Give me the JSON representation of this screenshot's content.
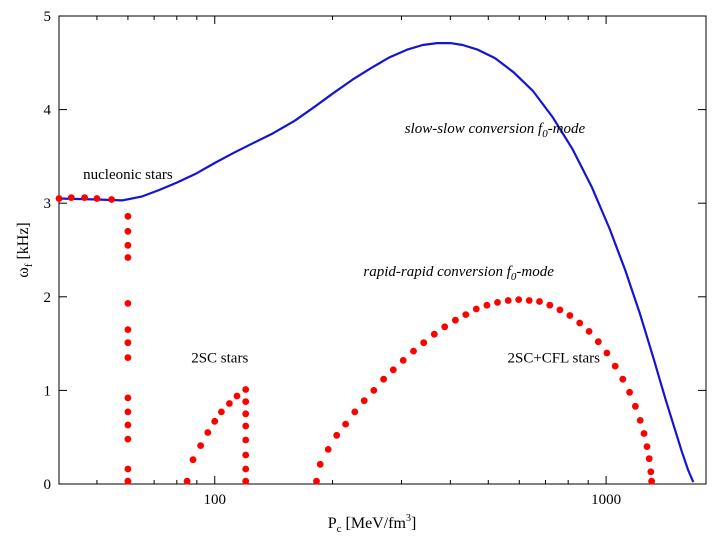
{
  "chart_data": {
    "type": "scatter",
    "title": "",
    "xlabel": {
      "main": "P",
      "sub": "c",
      "unit": " [MeV/fm",
      "sup": "3",
      "close": "]"
    },
    "ylabel": {
      "main": "ω",
      "sub": "f",
      "unit": " [kHz]"
    },
    "xscale": "log",
    "xlim": [
      40,
      1800
    ],
    "ylim": [
      0,
      5
    ],
    "x_ticks": [
      100,
      1000
    ],
    "y_ticks": [
      0,
      1,
      2,
      3,
      4,
      5
    ],
    "grid": false,
    "colors": {
      "line": "#1414d2",
      "dots": "#ff0000",
      "axis": "#000000"
    },
    "series": [
      {
        "style": "line",
        "points": [
          [
            40,
            3.05
          ],
          [
            50,
            3.04
          ],
          [
            58,
            3.03
          ],
          [
            65,
            3.07
          ],
          [
            72,
            3.14
          ],
          [
            80,
            3.22
          ],
          [
            90,
            3.32
          ],
          [
            100,
            3.43
          ],
          [
            112,
            3.54
          ],
          [
            125,
            3.64
          ],
          [
            140,
            3.74
          ],
          [
            160,
            3.88
          ],
          [
            180,
            4.03
          ],
          [
            200,
            4.17
          ],
          [
            225,
            4.32
          ],
          [
            250,
            4.44
          ],
          [
            280,
            4.56
          ],
          [
            310,
            4.64
          ],
          [
            340,
            4.69
          ],
          [
            370,
            4.71
          ],
          [
            400,
            4.71
          ],
          [
            430,
            4.69
          ],
          [
            470,
            4.64
          ],
          [
            520,
            4.55
          ],
          [
            580,
            4.4
          ],
          [
            650,
            4.2
          ],
          [
            730,
            3.92
          ],
          [
            820,
            3.58
          ],
          [
            920,
            3.17
          ],
          [
            1020,
            2.73
          ],
          [
            1120,
            2.28
          ],
          [
            1220,
            1.82
          ],
          [
            1320,
            1.35
          ],
          [
            1420,
            0.9
          ],
          [
            1500,
            0.58
          ],
          [
            1560,
            0.35
          ],
          [
            1620,
            0.15
          ],
          [
            1670,
            0.02
          ]
        ]
      },
      {
        "style": "dots",
        "points": [
          [
            40,
            3.05
          ],
          [
            43,
            3.06
          ],
          [
            46.5,
            3.06
          ],
          [
            50,
            3.05
          ],
          [
            54.5,
            3.04
          ],
          [
            60,
            2.86
          ],
          [
            60,
            2.7
          ],
          [
            60,
            2.55
          ],
          [
            60,
            2.42
          ],
          [
            60,
            1.93
          ],
          [
            60,
            1.65
          ],
          [
            60,
            1.51
          ],
          [
            60,
            1.35
          ],
          [
            60,
            0.92
          ],
          [
            60,
            0.77
          ],
          [
            60,
            0.63
          ],
          [
            60,
            0.48
          ],
          [
            60,
            0.16
          ],
          [
            60,
            0.03
          ],
          [
            85,
            0.03
          ],
          [
            88,
            0.26
          ],
          [
            92,
            0.41
          ],
          [
            96,
            0.55
          ],
          [
            100,
            0.67
          ],
          [
            104,
            0.77
          ],
          [
            109,
            0.86
          ],
          [
            114,
            0.94
          ],
          [
            120,
            1.01
          ],
          [
            120,
            0.88
          ],
          [
            120,
            0.75
          ],
          [
            120,
            0.62
          ],
          [
            120,
            0.47
          ],
          [
            120,
            0.31
          ],
          [
            120,
            0.16
          ],
          [
            120,
            0.03
          ],
          [
            182,
            0.03
          ],
          [
            186,
            0.21
          ],
          [
            195,
            0.37
          ],
          [
            205,
            0.52
          ],
          [
            216,
            0.64
          ],
          [
            228,
            0.77
          ],
          [
            241,
            0.89
          ],
          [
            255,
            1.0
          ],
          [
            270,
            1.12
          ],
          [
            286,
            1.22
          ],
          [
            303,
            1.32
          ],
          [
            322,
            1.42
          ],
          [
            342,
            1.51
          ],
          [
            364,
            1.6
          ],
          [
            387,
            1.68
          ],
          [
            412,
            1.75
          ],
          [
            438,
            1.81
          ],
          [
            466,
            1.87
          ],
          [
            496,
            1.91
          ],
          [
            528,
            1.94
          ],
          [
            562,
            1.96
          ],
          [
            598,
            1.97
          ],
          [
            636,
            1.96
          ],
          [
            676,
            1.95
          ],
          [
            718,
            1.91
          ],
          [
            762,
            1.86
          ],
          [
            808,
            1.8
          ],
          [
            856,
            1.72
          ],
          [
            905,
            1.63
          ],
          [
            955,
            1.52
          ],
          [
            1005,
            1.4
          ],
          [
            1055,
            1.26
          ],
          [
            1103,
            1.12
          ],
          [
            1148,
            0.98
          ],
          [
            1188,
            0.83
          ],
          [
            1222,
            0.68
          ],
          [
            1250,
            0.54
          ],
          [
            1272,
            0.4
          ],
          [
            1289,
            0.27
          ],
          [
            1301,
            0.13
          ],
          [
            1307,
            0.03
          ]
        ]
      }
    ],
    "annotations": [
      {
        "id": "nucleonic",
        "text": "nucleonic stars",
        "italic": false,
        "x": 60,
        "y": 3.26
      },
      {
        "id": "slow",
        "text": "slow-slow conversion f",
        "sub": "0",
        "tail": "-mode",
        "italic": true,
        "x": 520,
        "y": 3.75
      },
      {
        "id": "rapid",
        "text": "rapid-rapid conversion f",
        "sub": "0",
        "tail": "-mode",
        "italic": true,
        "x": 420,
        "y": 2.22
      },
      {
        "id": "2sc",
        "text": "2SC stars",
        "italic": false,
        "x": 103,
        "y": 1.3
      },
      {
        "id": "cfl",
        "text": "2SC+CFL stars",
        "italic": false,
        "x": 735,
        "y": 1.3
      }
    ]
  }
}
